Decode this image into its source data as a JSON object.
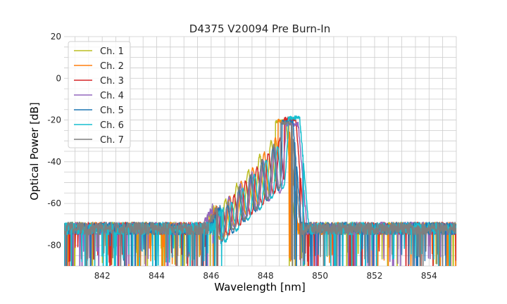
{
  "chart_data": {
    "type": "line",
    "title": "D4375 V20094 Pre Burn-In",
    "xlabel": "Wavelength [nm]",
    "ylabel": "Optical Power [dB]",
    "xlim": [
      840.6,
      855.0
    ],
    "ylim": [
      -90,
      20
    ],
    "xticks": [
      842,
      844,
      846,
      848,
      850,
      852,
      854
    ],
    "yticks": [
      -80,
      -60,
      -40,
      -20,
      0,
      20
    ],
    "grid": true,
    "legend_position": "upper-left",
    "noise_floor_db": -72,
    "series": [
      {
        "name": "Ch. 1",
        "color": "#bcbd22",
        "band_start_nm": 846.1,
        "band_end_nm": 848.75,
        "peak_db": -20.5
      },
      {
        "name": "Ch. 2",
        "color": "#ff7f0e",
        "band_start_nm": 846.2,
        "band_end_nm": 848.85,
        "peak_db": -20.5
      },
      {
        "name": "Ch. 3",
        "color": "#d62728",
        "band_start_nm": 846.3,
        "band_end_nm": 849.1,
        "peak_db": -19.5
      },
      {
        "name": "Ch. 4",
        "color": "#9467bd",
        "band_start_nm": 846.05,
        "band_end_nm": 849.2,
        "peak_db": -22.0
      },
      {
        "name": "Ch. 5",
        "color": "#1f77b4",
        "band_start_nm": 846.35,
        "band_end_nm": 849.0,
        "peak_db": -21.0
      },
      {
        "name": "Ch. 6",
        "color": "#17becf",
        "band_start_nm": 846.45,
        "band_end_nm": 849.25,
        "peak_db": -19.0
      },
      {
        "name": "Ch. 7",
        "color": "#7f7f7f",
        "band_start_nm": 846.25,
        "band_end_nm": 848.95,
        "peak_db": -21.5
      }
    ]
  }
}
